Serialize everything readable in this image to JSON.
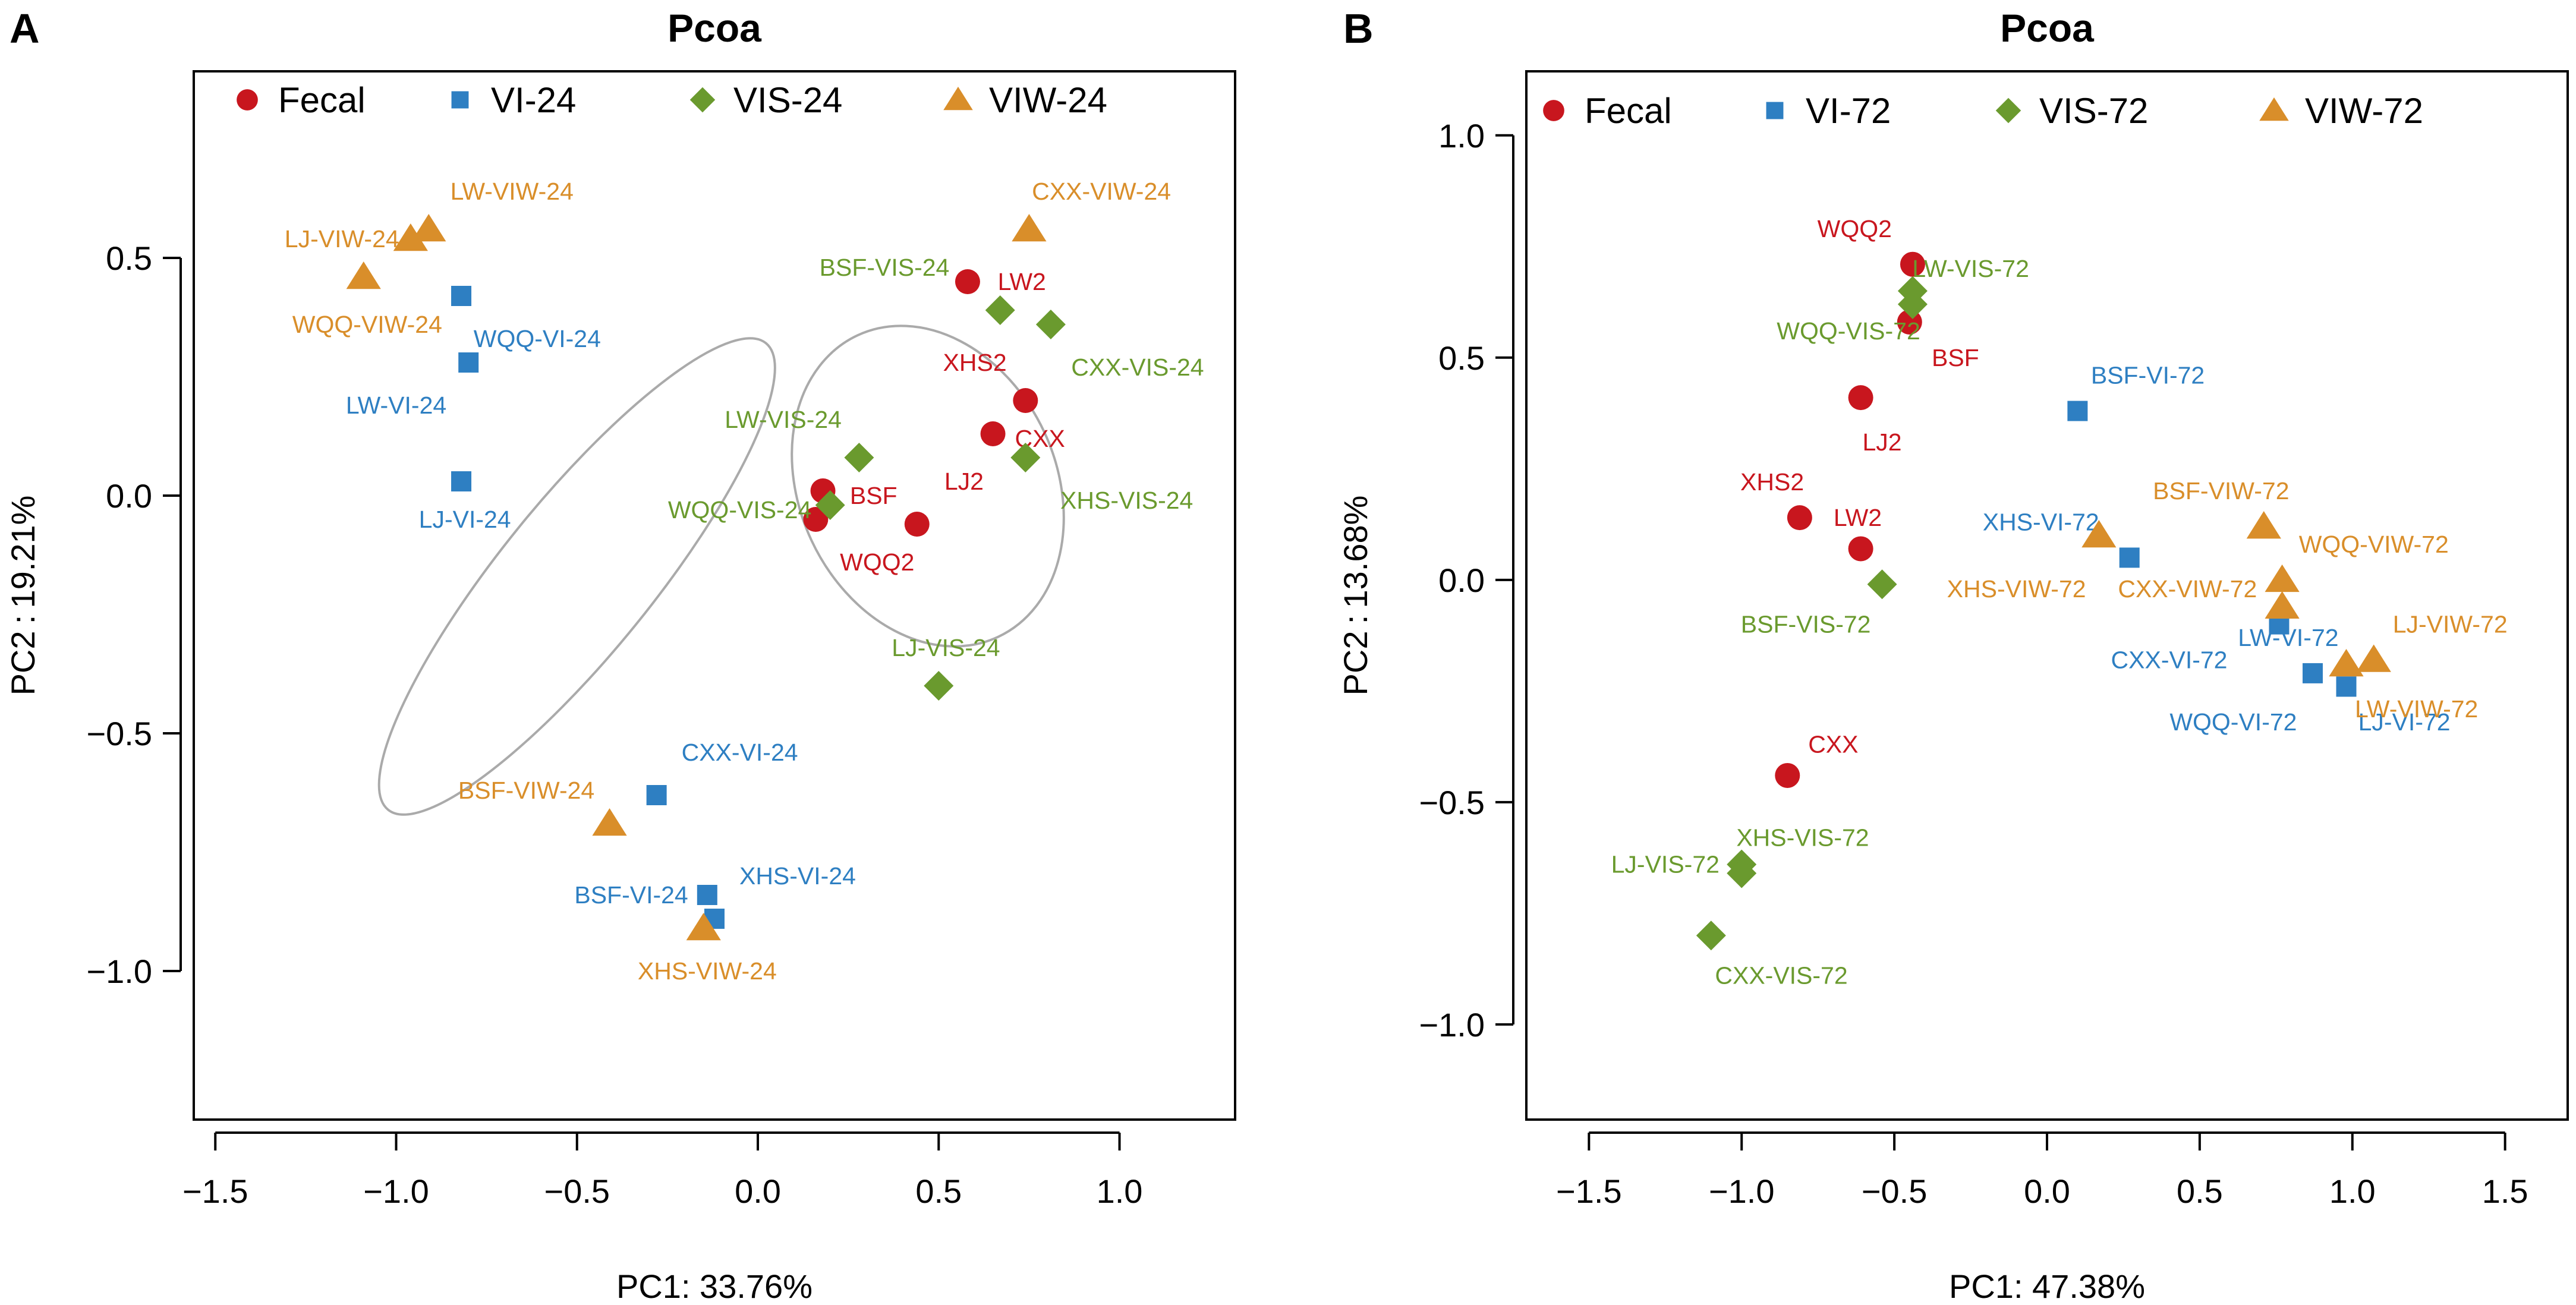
{
  "colors": {
    "Fecal": "#c8161e",
    "VI": "#2e7fc2",
    "VIS": "#6a9a2e",
    "VIW": "#d98e2a",
    "ellipse": "#aaaaaa"
  },
  "chart_data": [
    {
      "panel": "A",
      "type": "scatter",
      "title": "Pcoa",
      "xlabel": "PC1: 33.76%",
      "ylabel": "PC2 : 19.21%",
      "xlim": [
        -1.53,
        1.29
      ],
      "ylim": [
        -1.29,
        0.87
      ],
      "xticks": [
        -1.5,
        -1.0,
        -0.5,
        0.0,
        0.5,
        1.0
      ],
      "xtick_labels": [
        "−1.5",
        "−1.0",
        "−0.5",
        "0.0",
        "0.5",
        "1.0"
      ],
      "yticks": [
        -1.0,
        -0.5,
        0.0,
        0.5
      ],
      "ytick_labels": [
        "−1.0",
        "−0.5",
        "0.0",
        "0.5"
      ],
      "legend": {
        "position": "top",
        "entries": [
          {
            "group": "Fecal",
            "label": "Fecal",
            "shape": "circle"
          },
          {
            "group": "VI",
            "label": "VI-24",
            "shape": "square"
          },
          {
            "group": "VIS",
            "label": "VIS-24",
            "shape": "diamond"
          },
          {
            "group": "VIW",
            "label": "VIW-24",
            "shape": "triangle"
          }
        ]
      },
      "ellipses": [
        {
          "cx": -0.5,
          "cy": -0.17,
          "rx": 0.83,
          "ry": 0.16,
          "angle_deg": -51
        },
        {
          "cx": 0.47,
          "cy": 0.02,
          "rx": 0.46,
          "ry": 0.27,
          "angle_deg": 65
        }
      ],
      "points": [
        {
          "group": "Fecal",
          "label": "LW2",
          "x": 0.58,
          "y": 0.45,
          "lx": 0.73,
          "ly": 0.45
        },
        {
          "group": "Fecal",
          "label": "XHS2",
          "x": 0.74,
          "y": 0.2,
          "lx": 0.6,
          "ly": 0.28
        },
        {
          "group": "Fecal",
          "label": "CXX",
          "x": 0.65,
          "y": 0.13,
          "lx": 0.78,
          "ly": 0.12
        },
        {
          "group": "Fecal",
          "label": "BSF",
          "x": 0.18,
          "y": 0.01,
          "lx": 0.32,
          "ly": 0.0
        },
        {
          "group": "Fecal",
          "label": "LJ2",
          "x": 0.44,
          "y": -0.06,
          "lx": 0.57,
          "ly": 0.03
        },
        {
          "group": "Fecal",
          "label": "WQQ2",
          "x": 0.16,
          "y": -0.05,
          "lx": 0.33,
          "ly": -0.14
        },
        {
          "group": "VI",
          "label": "WQQ-VI-24",
          "x": -0.82,
          "y": 0.42,
          "lx": -0.61,
          "ly": 0.33
        },
        {
          "group": "VI",
          "label": "LW-VI-24",
          "x": -0.8,
          "y": 0.28,
          "lx": -1.0,
          "ly": 0.19
        },
        {
          "group": "VI",
          "label": "LJ-VI-24",
          "x": -0.82,
          "y": 0.03,
          "lx": -0.81,
          "ly": -0.05
        },
        {
          "group": "VI",
          "label": "CXX-VI-24",
          "x": -0.28,
          "y": -0.63,
          "lx": -0.05,
          "ly": -0.54
        },
        {
          "group": "VI",
          "label": "BSF-VI-24",
          "x": -0.14,
          "y": -0.84,
          "lx": -0.35,
          "ly": -0.84
        },
        {
          "group": "VI",
          "label": "XHS-VI-24",
          "x": -0.12,
          "y": -0.89,
          "lx": 0.11,
          "ly": -0.8
        },
        {
          "group": "VIS",
          "label": "BSF-VIS-24",
          "x": 0.67,
          "y": 0.39,
          "lx": 0.35,
          "ly": 0.48
        },
        {
          "group": "VIS",
          "label": "CXX-VIS-24",
          "x": 0.81,
          "y": 0.36,
          "lx": 1.05,
          "ly": 0.27
        },
        {
          "group": "VIS",
          "label": "LW-VIS-24",
          "x": 0.28,
          "y": 0.08,
          "lx": 0.07,
          "ly": 0.16
        },
        {
          "group": "VIS",
          "label": "XHS-VIS-24",
          "x": 0.74,
          "y": 0.08,
          "lx": 1.02,
          "ly": -0.01
        },
        {
          "group": "VIS",
          "label": "WQQ-VIS-24",
          "x": 0.2,
          "y": -0.02,
          "lx": -0.05,
          "ly": -0.03
        },
        {
          "group": "VIS",
          "label": "LJ-VIS-24",
          "x": 0.5,
          "y": -0.4,
          "lx": 0.52,
          "ly": -0.32
        },
        {
          "group": "VIW",
          "label": "LW-VIW-24",
          "x": -0.91,
          "y": 0.56,
          "lx": -0.68,
          "ly": 0.64
        },
        {
          "group": "VIW",
          "label": "LJ-VIW-24",
          "x": -0.96,
          "y": 0.54,
          "lx": -1.15,
          "ly": 0.54
        },
        {
          "group": "VIW",
          "label": "CXX-VIW-24",
          "x": 0.75,
          "y": 0.56,
          "lx": 0.95,
          "ly": 0.64
        },
        {
          "group": "VIW",
          "label": "WQQ-VIW-24",
          "x": -1.09,
          "y": 0.46,
          "lx": -1.08,
          "ly": 0.36
        },
        {
          "group": "VIW",
          "label": "BSF-VIW-24",
          "x": -0.41,
          "y": -0.69,
          "lx": -0.64,
          "ly": -0.62
        },
        {
          "group": "VIW",
          "label": "XHS-VIW-24",
          "x": -0.15,
          "y": -0.91,
          "lx": -0.14,
          "ly": -1.0
        }
      ]
    },
    {
      "panel": "B",
      "type": "scatter",
      "title": "Pcoa",
      "xlabel": "PC1: 47.38%",
      "ylabel": "PC2 : 13.68%",
      "xlim": [
        -1.67,
        1.67
      ],
      "ylim": [
        -1.19,
        1.12
      ],
      "xticks": [
        -1.5,
        -1.0,
        -0.5,
        0.0,
        0.5,
        1.0,
        1.5
      ],
      "xtick_labels": [
        "−1.5",
        "−1.0",
        "−0.5",
        "0.0",
        "0.5",
        "1.0",
        "1.5"
      ],
      "yticks": [
        -1.0,
        -0.5,
        0.0,
        0.5,
        1.0
      ],
      "ytick_labels": [
        "−1.0",
        "−0.5",
        "0.0",
        "0.5",
        "1.0"
      ],
      "legend": {
        "position": "top",
        "entries": [
          {
            "group": "Fecal",
            "label": "Fecal",
            "shape": "circle"
          },
          {
            "group": "VI",
            "label": "VI-72",
            "shape": "square"
          },
          {
            "group": "VIS",
            "label": "VIS-72",
            "shape": "diamond"
          },
          {
            "group": "VIW",
            "label": "VIW-72",
            "shape": "triangle"
          }
        ]
      },
      "ellipses": [],
      "points": [
        {
          "group": "Fecal",
          "label": "WQQ2",
          "x": -0.44,
          "y": 0.71,
          "lx": -0.63,
          "ly": 0.79
        },
        {
          "group": "Fecal",
          "label": "BSF",
          "x": -0.45,
          "y": 0.58,
          "lx": -0.3,
          "ly": 0.5
        },
        {
          "group": "Fecal",
          "label": "LJ2",
          "x": -0.61,
          "y": 0.41,
          "lx": -0.54,
          "ly": 0.31
        },
        {
          "group": "Fecal",
          "label": "XHS2",
          "x": -0.81,
          "y": 0.14,
          "lx": -0.9,
          "ly": 0.22
        },
        {
          "group": "Fecal",
          "label": "LW2",
          "x": -0.61,
          "y": 0.07,
          "lx": -0.62,
          "ly": 0.14
        },
        {
          "group": "Fecal",
          "label": "CXX",
          "x": -0.85,
          "y": -0.44,
          "lx": -0.7,
          "ly": -0.37
        },
        {
          "group": "VI",
          "label": "BSF-VI-72",
          "x": 0.1,
          "y": 0.38,
          "lx": 0.33,
          "ly": 0.46
        },
        {
          "group": "VI",
          "label": "XHS-VI-72",
          "x": 0.27,
          "y": 0.05,
          "lx": -0.02,
          "ly": 0.13
        },
        {
          "group": "VI",
          "label": "LW-VI-72",
          "x": 0.76,
          "y": -0.1,
          "lx": 0.79,
          "ly": -0.13
        },
        {
          "group": "VI",
          "label": "CXX-VI-72",
          "x": 0.87,
          "y": -0.21,
          "lx": 0.4,
          "ly": -0.18
        },
        {
          "group": "VI",
          "label": "WQQ-VI-72",
          "x": 0.98,
          "y": -0.24,
          "lx": 0.61,
          "ly": -0.32
        },
        {
          "group": "VI",
          "label": "LJ-VI-72",
          "x": 0.98,
          "y": -0.24,
          "lx": 1.17,
          "ly": -0.32
        },
        {
          "group": "VIS",
          "label": "LW-VIS-72",
          "x": -0.44,
          "y": 0.65,
          "lx": -0.25,
          "ly": 0.7
        },
        {
          "group": "VIS",
          "label": "WQQ-VIS-72",
          "x": -0.44,
          "y": 0.62,
          "lx": -0.65,
          "ly": 0.56
        },
        {
          "group": "VIS",
          "label": "BSF-VIS-72",
          "x": -0.54,
          "y": -0.01,
          "lx": -0.79,
          "ly": -0.1
        },
        {
          "group": "VIS",
          "label": "XHS-VIS-72",
          "x": -1.0,
          "y": -0.64,
          "lx": -0.8,
          "ly": -0.58
        },
        {
          "group": "VIS",
          "label": "LJ-VIS-72",
          "x": -1.0,
          "y": -0.66,
          "lx": -1.25,
          "ly": -0.64
        },
        {
          "group": "VIS",
          "label": "CXX-VIS-72",
          "x": -1.1,
          "y": -0.8,
          "lx": -0.87,
          "ly": -0.89
        },
        {
          "group": "VIW",
          "label": "BSF-VIW-72",
          "x": 0.71,
          "y": 0.12,
          "lx": 0.57,
          "ly": 0.2
        },
        {
          "group": "VIW",
          "label": "WQQ-VIW-72",
          "x": 0.77,
          "y": 0.0,
          "lx": 1.07,
          "ly": 0.08
        },
        {
          "group": "VIW",
          "label": "XHS-VIW-72",
          "x": 0.17,
          "y": 0.1,
          "lx": -0.1,
          "ly": -0.02
        },
        {
          "group": "VIW",
          "label": "CXX-VIW-72",
          "x": 0.77,
          "y": -0.06,
          "lx": 0.46,
          "ly": -0.02
        },
        {
          "group": "VIW",
          "label": "LJ-VIW-72",
          "x": 1.07,
          "y": -0.18,
          "lx": 1.32,
          "ly": -0.1
        },
        {
          "group": "VIW",
          "label": "LW-VIW-72",
          "x": 0.98,
          "y": -0.19,
          "lx": 1.21,
          "ly": -0.29
        }
      ]
    }
  ]
}
